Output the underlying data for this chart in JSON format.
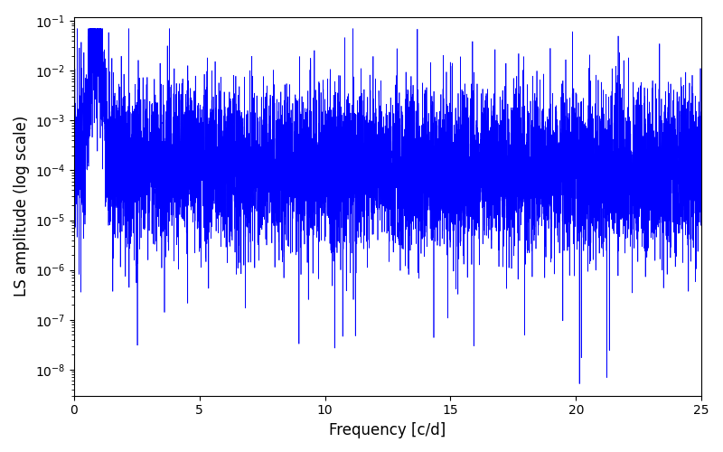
{
  "xlabel": "Frequency [c/d]",
  "ylabel": "LS amplitude (log scale)",
  "line_color": "#0000ff",
  "xlim": [
    0,
    25
  ],
  "ymin": 3e-09,
  "ymax": 0.12,
  "freq_min": 0.005,
  "freq_max": 25.0,
  "n_points": 8000,
  "seed": 17,
  "peak_freq": 0.85,
  "peak_amplitude": 0.045,
  "noise_floor": 0.0001,
  "background_color": "#ffffff",
  "figsize": [
    8.0,
    5.0
  ],
  "dpi": 100
}
